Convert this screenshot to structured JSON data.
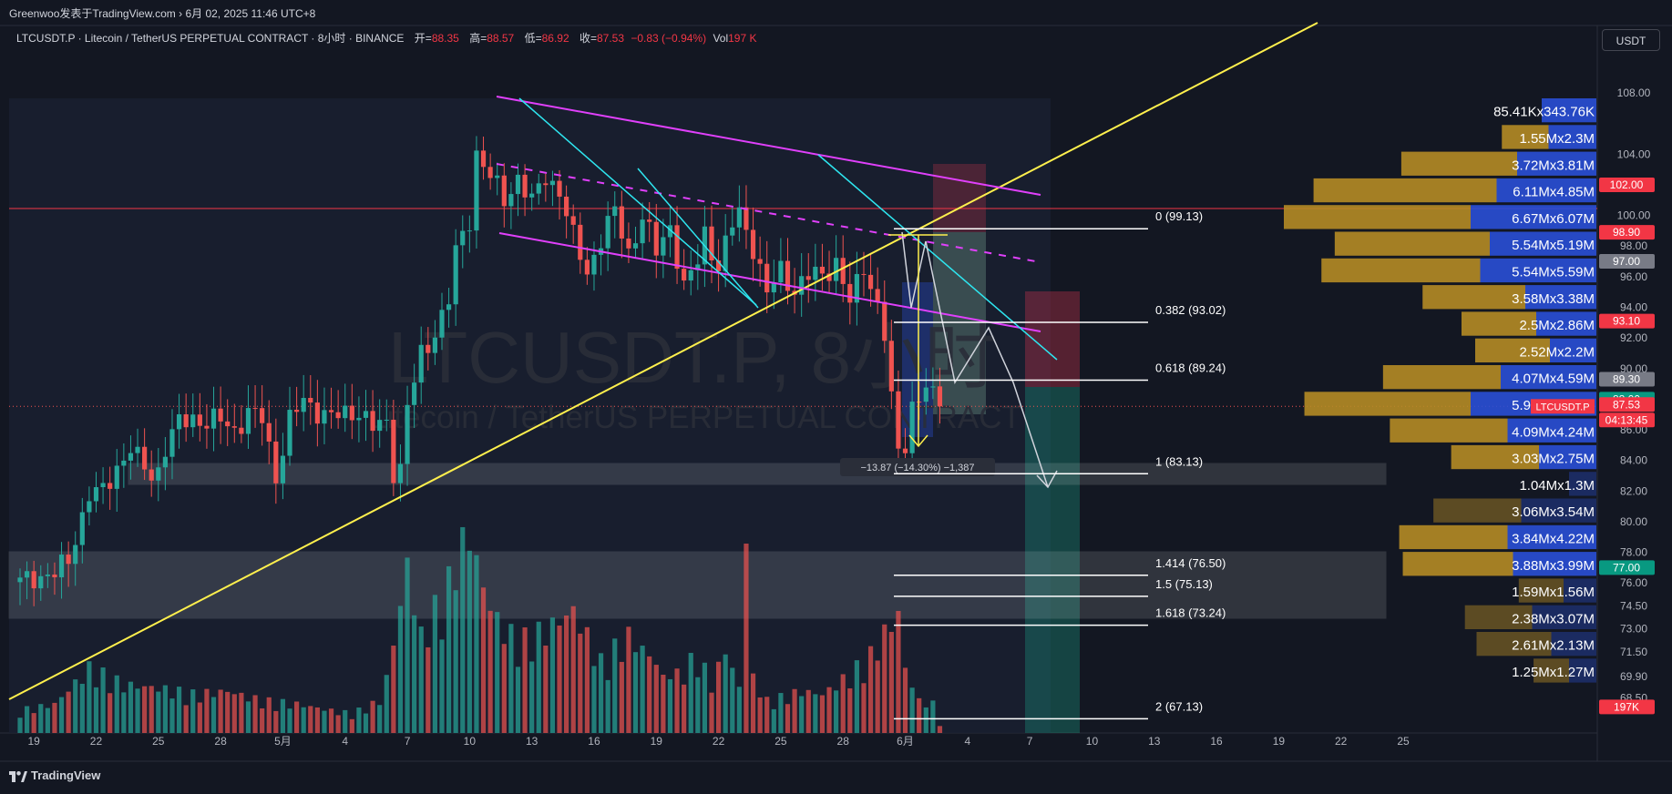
{
  "header": {
    "publisher": "Greenwoo发表于TradingView.com",
    "date_sep": "›",
    "timestamp": "6月 02, 2025 11:46 UTC+8"
  },
  "legend": {
    "symbol": "LTCUSDT.P · Litecoin / TetherUS PERPETUAL CONTRACT · 8小时 · BINANCE",
    "open_label": "开=",
    "open": "88.35",
    "high_label": "高=",
    "high": "88.57",
    "low_label": "低=",
    "low": "86.92",
    "close_label": "收=",
    "close": "87.53",
    "change": "−0.83 (−0.94%)",
    "vol_label": "Vol",
    "vol": "197 K"
  },
  "currency_button": "USDT",
  "watermark": {
    "line1": "LTCUSDT.P, 8小时",
    "line2": "Litecoin / TetherUS PERPETUAL CONTRACT"
  },
  "footer": {
    "brand": "TradingView"
  },
  "colors": {
    "background": "#131722",
    "up": "#26a69a",
    "down": "#ef5350",
    "channel": "#e040fb",
    "trendline": "#fff04d",
    "pattern": "#2ee6f0",
    "hline_red": "#f23645",
    "profile_gold": "#b58b25",
    "profile_blue": "#2a4fd6"
  },
  "chart_data": {
    "type": "candlestick",
    "y_range": [
      66.2,
      110.5
    ],
    "y_ticks": [
      "108.00",
      "104.00",
      "100.00",
      "98.00",
      "96.00",
      "94.00",
      "92.00",
      "90.00",
      "86.00",
      "84.00",
      "82.00",
      "80.00",
      "78.00",
      "76.00",
      "74.50",
      "73.00",
      "71.50",
      "69.90",
      "68.50"
    ],
    "x_ticks": [
      {
        "label": "19",
        "idx": 2
      },
      {
        "label": "22",
        "idx": 11
      },
      {
        "label": "25",
        "idx": 20
      },
      {
        "label": "28",
        "idx": 29
      },
      {
        "label": "5月",
        "idx": 38
      },
      {
        "label": "4",
        "idx": 47
      },
      {
        "label": "7",
        "idx": 56
      },
      {
        "label": "10",
        "idx": 65
      },
      {
        "label": "13",
        "idx": 74
      },
      {
        "label": "16",
        "idx": 83
      },
      {
        "label": "19",
        "idx": 92
      },
      {
        "label": "22",
        "idx": 101
      },
      {
        "label": "25",
        "idx": 110
      },
      {
        "label": "28",
        "idx": 119
      },
      {
        "label": "6月",
        "idx": 128
      },
      {
        "label": "4",
        "idx": 137
      },
      {
        "label": "7",
        "idx": 146
      },
      {
        "label": "10",
        "idx": 155
      },
      {
        "label": "13",
        "idx": 164
      },
      {
        "label": "16",
        "idx": 173
      },
      {
        "label": "19",
        "idx": 182
      },
      {
        "label": "22",
        "idx": 191
      },
      {
        "label": "25",
        "idx": 200
      }
    ],
    "price_anchors": [
      [
        0,
        76.0
      ],
      [
        2,
        76.4
      ],
      [
        5,
        76.6
      ],
      [
        7,
        77.4
      ],
      [
        8,
        79.0
      ],
      [
        10,
        81.8
      ],
      [
        12,
        81.9
      ],
      [
        14,
        83.6
      ],
      [
        16,
        84.8
      ],
      [
        17,
        84.0
      ],
      [
        19,
        83.0
      ],
      [
        20,
        83.4
      ],
      [
        21,
        84.9
      ],
      [
        23,
        86.4
      ],
      [
        25,
        86.8
      ],
      [
        27,
        86.5
      ],
      [
        29,
        86.6
      ],
      [
        31,
        86.0
      ],
      [
        33,
        87.1
      ],
      [
        35,
        86.7
      ],
      [
        37,
        83.0
      ],
      [
        39,
        86.6
      ],
      [
        41,
        87.9
      ],
      [
        43,
        87.3
      ],
      [
        45,
        86.8
      ],
      [
        47,
        87.0
      ],
      [
        49,
        87.3
      ],
      [
        51,
        86.1
      ],
      [
        53,
        86.4
      ],
      [
        54,
        83.4
      ],
      [
        55,
        83.6
      ],
      [
        56,
        87.5
      ],
      [
        58,
        90.8
      ],
      [
        59,
        91.5
      ],
      [
        60,
        92.5
      ],
      [
        62,
        94.5
      ],
      [
        63,
        97.5
      ],
      [
        65,
        99.8
      ],
      [
        66,
        104.1
      ],
      [
        68,
        102.5
      ],
      [
        70,
        101.0
      ],
      [
        72,
        102.5
      ],
      [
        74,
        100.8
      ],
      [
        76,
        102.6
      ],
      [
        78,
        101.6
      ],
      [
        80,
        98.5
      ],
      [
        82,
        96.3
      ],
      [
        84,
        98.5
      ],
      [
        86,
        100.2
      ],
      [
        88,
        97.6
      ],
      [
        90,
        99.9
      ],
      [
        92,
        97.6
      ],
      [
        94,
        99.4
      ],
      [
        96,
        95.2
      ],
      [
        98,
        97.0
      ],
      [
        99,
        98.9
      ],
      [
        101,
        96.6
      ],
      [
        103,
        99.4
      ],
      [
        104,
        100.2
      ],
      [
        106,
        98.0
      ],
      [
        108,
        94.8
      ],
      [
        110,
        96.5
      ],
      [
        112,
        95.1
      ],
      [
        114,
        96.0
      ],
      [
        116,
        96.2
      ],
      [
        118,
        96.9
      ],
      [
        120,
        94.2
      ],
      [
        122,
        96.8
      ],
      [
        124,
        94.1
      ],
      [
        125,
        92.1
      ],
      [
        126,
        87.8
      ],
      [
        127,
        84.7
      ],
      [
        128,
        85.2
      ],
      [
        129,
        87.6
      ],
      [
        131,
        88.6
      ],
      [
        133,
        87.53
      ]
    ],
    "volume_anchors": [
      [
        0,
        7
      ],
      [
        5,
        9
      ],
      [
        10,
        20
      ],
      [
        15,
        15
      ],
      [
        20,
        14
      ],
      [
        25,
        12
      ],
      [
        30,
        13
      ],
      [
        35,
        10
      ],
      [
        40,
        9
      ],
      [
        45,
        7
      ],
      [
        48,
        6
      ],
      [
        52,
        10
      ],
      [
        54,
        24
      ],
      [
        55,
        40
      ],
      [
        56,
        52
      ],
      [
        58,
        30
      ],
      [
        60,
        38
      ],
      [
        62,
        46
      ],
      [
        63,
        55
      ],
      [
        65,
        62
      ],
      [
        67,
        45
      ],
      [
        69,
        35
      ],
      [
        72,
        28
      ],
      [
        76,
        32
      ],
      [
        80,
        38
      ],
      [
        84,
        22
      ],
      [
        88,
        30
      ],
      [
        92,
        22
      ],
      [
        95,
        18
      ],
      [
        98,
        24
      ],
      [
        100,
        15
      ],
      [
        102,
        26
      ],
      [
        104,
        14
      ],
      [
        106,
        17
      ],
      [
        108,
        10
      ],
      [
        110,
        11
      ],
      [
        113,
        13
      ],
      [
        116,
        12
      ],
      [
        120,
        18
      ],
      [
        123,
        24
      ],
      [
        125,
        31
      ],
      [
        127,
        37
      ],
      [
        128,
        20
      ],
      [
        130,
        10
      ],
      [
        132,
        9
      ],
      [
        133,
        3
      ]
    ],
    "red_volume_spikes": [
      [
        54,
        30
      ],
      [
        76,
        30
      ],
      [
        93,
        20
      ],
      [
        105,
        52
      ]
    ],
    "volume_labels": [
      {
        "a": "85.41K",
        "b": "343.76K"
      },
      {
        "a": "1.55M",
        "b": "2.3M"
      },
      {
        "a": "3.72M",
        "b": "3.81M"
      },
      {
        "a": "6.11M",
        "b": "4.85M"
      },
      {
        "a": "6.67M",
        "b": "6.07M"
      },
      {
        "a": "5.54M",
        "b": "5.19M"
      },
      {
        "a": "5.54M",
        "b": "5.59M"
      },
      {
        "a": "3.58M",
        "b": "3.38M"
      },
      {
        "a": "2.5M",
        "b": "2.86M"
      },
      {
        "a": "2.52M",
        "b": "2.2M"
      },
      {
        "a": "4.07M",
        "b": "4.59M"
      },
      {
        "a": "5.92M",
        "b": "6.09M"
      },
      {
        "a": "4.09M",
        "b": "4.24M"
      },
      {
        "a": "3.03M",
        "b": "2.75M"
      },
      {
        "a": "1.04M",
        "b": "1.3M"
      },
      {
        "a": "3.06M",
        "b": "3.54M"
      },
      {
        "a": "3.84M",
        "b": "4.22M"
      },
      {
        "a": "3.88M",
        "b": "3.99M"
      },
      {
        "a": "1.59M",
        "b": "1.56M"
      },
      {
        "a": "2.38M",
        "b": "3.07M"
      },
      {
        "a": "2.61M",
        "b": "2.13M"
      },
      {
        "a": "1.25M",
        "b": "1.27M"
      }
    ],
    "profile_bars": [
      {
        "sell": 0.0,
        "buy": 0.4
      },
      {
        "sell": 0.25,
        "buy": 0.35
      },
      {
        "sell": 0.62,
        "buy": 0.58
      },
      {
        "sell": 0.98,
        "buy": 0.73
      },
      {
        "sell": 1.0,
        "buy": 0.92
      },
      {
        "sell": 0.83,
        "buy": 0.78
      },
      {
        "sell": 0.85,
        "buy": 0.85
      },
      {
        "sell": 0.55,
        "buy": 0.52
      },
      {
        "sell": 0.4,
        "buy": 0.44
      },
      {
        "sell": 0.4,
        "buy": 0.34
      },
      {
        "sell": 0.63,
        "buy": 0.7
      },
      {
        "sell": 0.89,
        "buy": 0.92
      },
      {
        "sell": 0.63,
        "buy": 0.65
      },
      {
        "sell": 0.47,
        "buy": 0.42
      },
      {
        "sell": 0.0,
        "buy": 0.2
      },
      {
        "sell": 0.47,
        "buy": 0.55
      },
      {
        "sell": 0.58,
        "buy": 0.65
      },
      {
        "sell": 0.59,
        "buy": 0.61
      },
      {
        "sell": 0.24,
        "buy": 0.24
      },
      {
        "sell": 0.36,
        "buy": 0.47
      },
      {
        "sell": 0.4,
        "buy": 0.33
      },
      {
        "sell": 0.19,
        "buy": 0.2
      }
    ],
    "fib_levels": [
      {
        "label": "0 (99.13)",
        "price": 99.13
      },
      {
        "label": "0.382 (93.02)",
        "price": 93.02
      },
      {
        "label": "0.618 (89.24)",
        "price": 89.24
      },
      {
        "label": "1 (83.13)",
        "price": 83.13
      },
      {
        "label": "1.414 (76.50)",
        "price": 76.5
      },
      {
        "label": "1.5 (75.13)",
        "price": 75.13
      },
      {
        "label": "1.618 (73.24)",
        "price": 73.24
      },
      {
        "label": "2 (67.13)",
        "price": 67.13
      }
    ],
    "measure_label": "−13.87 (−14.30%) −1,387",
    "price_tags": [
      {
        "label": "102.00",
        "price": 102.0,
        "color": "#f23645"
      },
      {
        "label": "98.90",
        "price": 98.9,
        "color": "#f23645"
      },
      {
        "label": "97.00",
        "price": 97.0,
        "color": "#787b86"
      },
      {
        "label": "93.10",
        "price": 93.1,
        "color": "#f23645"
      },
      {
        "label": "89.30",
        "price": 89.3,
        "color": "#787b86"
      },
      {
        "label": "88.00",
        "price": 88.0,
        "color": "#089981"
      },
      {
        "label": "LTCUSDT.P",
        "price": 87.53,
        "color": "#f23645"
      },
      {
        "label": "87.53",
        "price": 87.53,
        "color": "#f23645"
      },
      {
        "label": "04:13:45",
        "price": 87.53,
        "color": "#f23645"
      },
      {
        "label": "77.00",
        "price": 77.0,
        "color": "#089981"
      },
      {
        "label": "197K",
        "price": 67.9,
        "color": "#f23645"
      }
    ]
  }
}
